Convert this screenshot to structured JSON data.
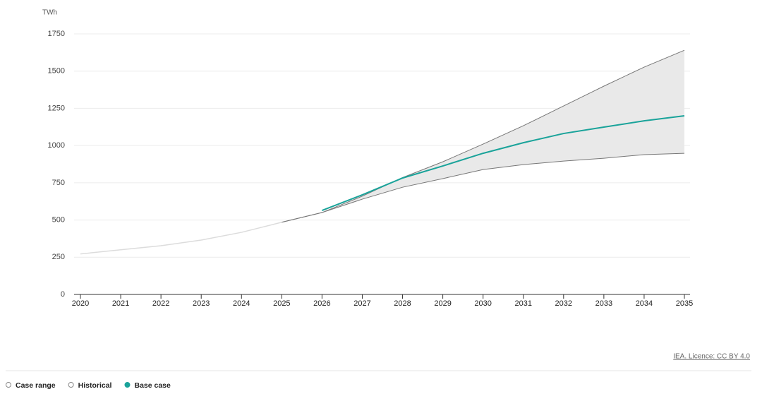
{
  "chart_data": {
    "type": "range-line",
    "ylabel": "TWh",
    "source": "IEA. Licence: CC BY 4.0",
    "x": [
      2020,
      2021,
      2022,
      2023,
      2024,
      2025,
      2026,
      2027,
      2028,
      2029,
      2030,
      2031,
      2032,
      2033,
      2034,
      2035
    ],
    "xlim": [
      2020,
      2035
    ],
    "xticks": [
      2020,
      2021,
      2022,
      2023,
      2024,
      2025,
      2026,
      2027,
      2028,
      2029,
      2030,
      2031,
      2032,
      2033,
      2034,
      2035
    ],
    "ylim": [
      0,
      1750
    ],
    "yticks": [
      0,
      250,
      500,
      750,
      1000,
      1250,
      1500,
      1750
    ],
    "grid": true,
    "legend": "bottom-left",
    "series": [
      {
        "name": "Case range",
        "color": "#e9e9e9",
        "lower": [
          null,
          null,
          null,
          null,
          null,
          485,
          550,
          640,
          720,
          778,
          839,
          872,
          896,
          915,
          939,
          948
        ],
        "upper": [
          null,
          null,
          null,
          null,
          null,
          485,
          550,
          660,
          785,
          891,
          1010,
          1133,
          1266,
          1399,
          1527,
          1640
        ]
      },
      {
        "name": "Historical",
        "color": "#dcdcdc",
        "values": [
          272,
          300,
          327,
          365,
          417,
          485,
          null,
          null,
          null,
          null,
          null,
          null,
          null,
          null,
          null,
          null
        ]
      },
      {
        "name": "Base case",
        "color": "#1aa39a",
        "values": [
          null,
          null,
          null,
          null,
          null,
          null,
          564,
          669,
          782,
          863,
          948,
          1019,
          1081,
          1124,
          1166,
          1200
        ]
      }
    ]
  }
}
